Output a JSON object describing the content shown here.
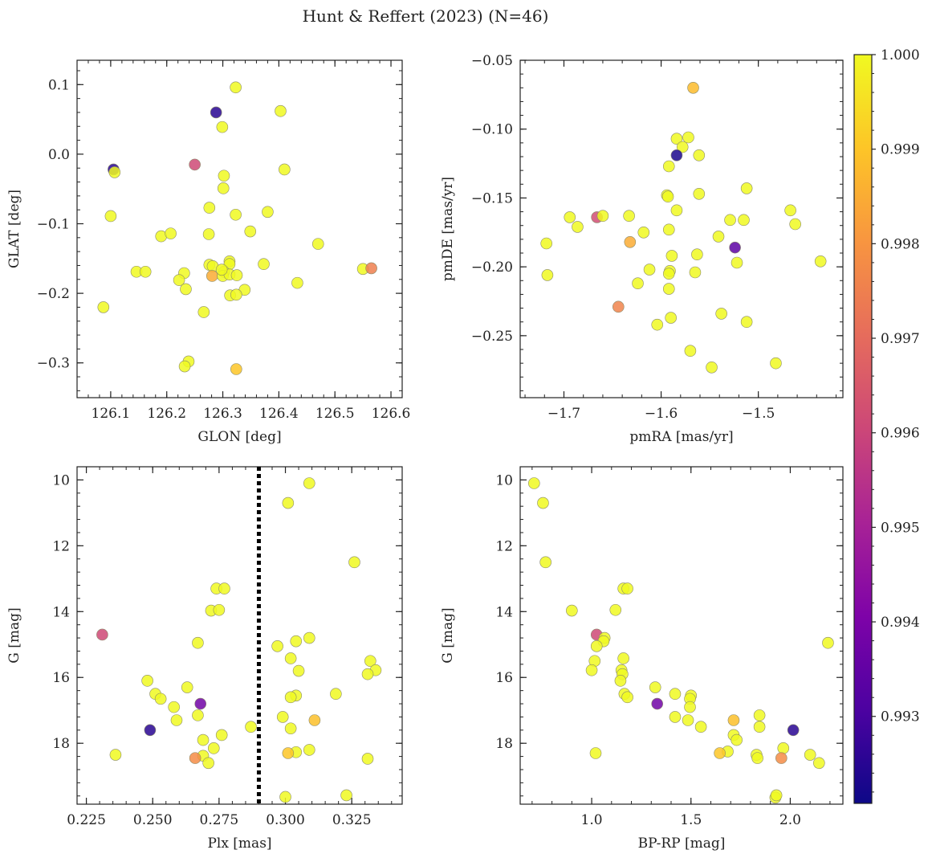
{
  "title": "Hunt & Reffert (2023) (N=46)",
  "colorbar": {
    "vmin": 0.99208,
    "vmax": 1.0,
    "ticks": [
      "1.000",
      "0.999",
      "0.998",
      "0.997",
      "0.996",
      "0.995",
      "0.994",
      "0.993"
    ],
    "colormap": "plasma"
  },
  "chart_data": [
    {
      "type": "scatter",
      "xlabel": "GLON [deg]",
      "ylabel": "GLAT [deg]",
      "xlim": [
        126.04,
        126.62
      ],
      "ylim": [
        -0.35,
        0.135
      ],
      "xticks": [
        126.1,
        126.2,
        126.3,
        126.4,
        126.5,
        126.6
      ],
      "xtick_labels": [
        "126.1",
        "126.2",
        "126.3",
        "126.4",
        "126.5",
        "126.6"
      ],
      "yticks": [
        0.1,
        0.0,
        -0.1,
        -0.2,
        -0.3
      ],
      "ytick_labels": [
        "0.1",
        "0.0",
        "−0.1",
        "−0.2",
        "−0.3"
      ],
      "invert_y": false,
      "points": [
        [
          126.323,
          0.096,
          1.0
        ],
        [
          126.288,
          0.06,
          0.9925
        ],
        [
          126.299,
          0.039,
          1.0
        ],
        [
          126.403,
          0.062,
          1.0
        ],
        [
          126.105,
          -0.022,
          0.9925
        ],
        [
          126.107,
          -0.026,
          1.0
        ],
        [
          126.25,
          -0.015,
          0.9961
        ],
        [
          126.302,
          -0.031,
          1.0
        ],
        [
          126.41,
          -0.022,
          1.0
        ],
        [
          126.301,
          -0.049,
          1.0
        ],
        [
          126.1,
          -0.089,
          1.0
        ],
        [
          126.276,
          -0.077,
          1.0
        ],
        [
          126.323,
          -0.087,
          1.0
        ],
        [
          126.38,
          -0.083,
          1.0
        ],
        [
          126.19,
          -0.118,
          1.0
        ],
        [
          126.207,
          -0.114,
          1.0
        ],
        [
          126.275,
          -0.115,
          1.0
        ],
        [
          126.349,
          -0.111,
          1.0
        ],
        [
          126.47,
          -0.129,
          1.0
        ],
        [
          126.312,
          -0.154,
          1.0
        ],
        [
          126.312,
          -0.158,
          1.0
        ],
        [
          126.373,
          -0.158,
          1.0
        ],
        [
          126.276,
          -0.159,
          1.0
        ],
        [
          126.282,
          -0.161,
          1.0
        ],
        [
          126.146,
          -0.169,
          1.0
        ],
        [
          126.162,
          -0.169,
          1.0
        ],
        [
          126.231,
          -0.171,
          1.0
        ],
        [
          126.281,
          -0.175,
          0.9985
        ],
        [
          126.302,
          -0.169,
          1.0
        ],
        [
          126.3,
          -0.175,
          1.0
        ],
        [
          126.312,
          -0.173,
          1.0
        ],
        [
          126.325,
          -0.174,
          1.0
        ],
        [
          126.222,
          -0.181,
          1.0
        ],
        [
          126.433,
          -0.185,
          1.0
        ],
        [
          126.55,
          -0.165,
          1.0
        ],
        [
          126.565,
          -0.164,
          0.9975
        ],
        [
          126.234,
          -0.194,
          1.0
        ],
        [
          126.339,
          -0.195,
          1.0
        ],
        [
          126.313,
          -0.203,
          1.0
        ],
        [
          126.324,
          -0.202,
          1.0
        ],
        [
          126.087,
          -0.22,
          1.0
        ],
        [
          126.266,
          -0.227,
          1.0
        ],
        [
          126.239,
          -0.298,
          1.0
        ],
        [
          126.232,
          -0.305,
          1.0
        ],
        [
          126.324,
          -0.309,
          0.999
        ],
        [
          126.298,
          -0.166,
          1.0
        ]
      ]
    },
    {
      "type": "scatter",
      "xlabel": "pmRA [mas/yr]",
      "ylabel": "pmDE [mas/yr]",
      "xlim": [
        -1.745,
        -1.413
      ],
      "ylim": [
        -0.295,
        -0.05
      ],
      "xticks": [
        -1.7,
        -1.6,
        -1.5
      ],
      "xtick_labels": [
        "−1.7",
        "−1.6",
        "−1.5"
      ],
      "yticks": [
        -0.05,
        -0.1,
        -0.15,
        -0.2,
        -0.25
      ],
      "ytick_labels": [
        "−0.05",
        "−0.10",
        "−0.15",
        "−0.20",
        "−0.25"
      ],
      "invert_y": false,
      "points": [
        [
          -1.567,
          -0.07,
          0.9988
        ],
        [
          -1.584,
          -0.107,
          1.0
        ],
        [
          -1.572,
          -0.106,
          1.0
        ],
        [
          -1.578,
          -0.113,
          1.0
        ],
        [
          -1.584,
          -0.119,
          0.9923
        ],
        [
          -1.561,
          -0.119,
          1.0
        ],
        [
          -1.592,
          -0.127,
          1.0
        ],
        [
          -1.512,
          -0.143,
          1.0
        ],
        [
          -1.561,
          -0.147,
          1.0
        ],
        [
          -1.594,
          -0.148,
          1.0
        ],
        [
          -1.593,
          -0.149,
          1.0
        ],
        [
          -1.584,
          -0.159,
          1.0
        ],
        [
          -1.467,
          -0.159,
          1.0
        ],
        [
          -1.694,
          -0.164,
          1.0
        ],
        [
          -1.666,
          -0.164,
          0.9962
        ],
        [
          -1.66,
          -0.163,
          1.0
        ],
        [
          -1.633,
          -0.163,
          1.0
        ],
        [
          -1.529,
          -0.166,
          1.0
        ],
        [
          -1.515,
          -0.166,
          1.0
        ],
        [
          -1.462,
          -0.169,
          1.0
        ],
        [
          -1.686,
          -0.171,
          1.0
        ],
        [
          -1.592,
          -0.173,
          1.0
        ],
        [
          -1.618,
          -0.175,
          1.0
        ],
        [
          -1.541,
          -0.178,
          1.0
        ],
        [
          -1.632,
          -0.182,
          0.9985
        ],
        [
          -1.718,
          -0.183,
          1.0
        ],
        [
          -1.524,
          -0.186,
          0.9934
        ],
        [
          -1.563,
          -0.191,
          1.0
        ],
        [
          -1.589,
          -0.192,
          1.0
        ],
        [
          -1.522,
          -0.197,
          1.0
        ],
        [
          -1.436,
          -0.196,
          1.0
        ],
        [
          -1.612,
          -0.202,
          1.0
        ],
        [
          -1.591,
          -0.203,
          1.0
        ],
        [
          -1.565,
          -0.204,
          1.0
        ],
        [
          -1.717,
          -0.206,
          1.0
        ],
        [
          -1.592,
          -0.205,
          1.0
        ],
        [
          -1.624,
          -0.212,
          1.0
        ],
        [
          -1.592,
          -0.216,
          1.0
        ],
        [
          -1.644,
          -0.229,
          0.9976
        ],
        [
          -1.538,
          -0.234,
          1.0
        ],
        [
          -1.59,
          -0.237,
          1.0
        ],
        [
          -1.604,
          -0.242,
          1.0
        ],
        [
          -1.512,
          -0.24,
          1.0
        ],
        [
          -1.57,
          -0.261,
          1.0
        ],
        [
          -1.482,
          -0.27,
          1.0
        ],
        [
          -1.548,
          -0.273,
          1.0
        ]
      ]
    },
    {
      "type": "scatter",
      "xlabel": "Plx [mas]",
      "ylabel": "G [mag]",
      "xlim": [
        0.2215,
        0.344
      ],
      "ylim": [
        19.85,
        9.6
      ],
      "xticks": [
        0.225,
        0.25,
        0.275,
        0.3,
        0.325
      ],
      "xtick_labels": [
        "0.225",
        "0.250",
        "0.275",
        "0.300",
        "0.325"
      ],
      "yticks": [
        10,
        12,
        14,
        16,
        18
      ],
      "ytick_labels": [
        "10",
        "12",
        "14",
        "16",
        "18"
      ],
      "invert_y": true,
      "vline": 0.29,
      "points": [
        [
          0.309,
          10.1,
          1.0
        ],
        [
          0.301,
          10.7,
          1.0
        ],
        [
          0.326,
          12.5,
          1.0
        ],
        [
          0.274,
          13.3,
          1.0
        ],
        [
          0.277,
          13.3,
          1.0
        ],
        [
          0.272,
          13.97,
          1.0
        ],
        [
          0.275,
          13.95,
          1.0
        ],
        [
          0.231,
          14.7,
          0.9961
        ],
        [
          0.267,
          14.95,
          1.0
        ],
        [
          0.309,
          14.8,
          1.0
        ],
        [
          0.304,
          14.9,
          1.0
        ],
        [
          0.297,
          15.05,
          1.0
        ],
        [
          0.302,
          15.42,
          1.0
        ],
        [
          0.332,
          15.5,
          1.0
        ],
        [
          0.334,
          15.78,
          1.0
        ],
        [
          0.305,
          15.8,
          1.0
        ],
        [
          0.331,
          15.9,
          1.0
        ],
        [
          0.248,
          16.1,
          1.0
        ],
        [
          0.263,
          16.3,
          1.0
        ],
        [
          0.251,
          16.5,
          1.0
        ],
        [
          0.319,
          16.5,
          1.0
        ],
        [
          0.304,
          16.55,
          1.0
        ],
        [
          0.253,
          16.65,
          1.0
        ],
        [
          0.302,
          16.6,
          1.0
        ],
        [
          0.268,
          16.8,
          0.9938
        ],
        [
          0.258,
          16.9,
          1.0
        ],
        [
          0.267,
          17.15,
          1.0
        ],
        [
          0.299,
          17.2,
          1.0
        ],
        [
          0.259,
          17.3,
          1.0
        ],
        [
          0.311,
          17.3,
          0.9989
        ],
        [
          0.287,
          17.5,
          1.0
        ],
        [
          0.249,
          17.6,
          0.9925
        ],
        [
          0.302,
          17.55,
          1.0
        ],
        [
          0.276,
          17.75,
          1.0
        ],
        [
          0.269,
          17.9,
          1.0
        ],
        [
          0.273,
          18.15,
          1.0
        ],
        [
          0.309,
          18.2,
          1.0
        ],
        [
          0.304,
          18.27,
          1.0
        ],
        [
          0.301,
          18.3,
          0.999
        ],
        [
          0.236,
          18.35,
          1.0
        ],
        [
          0.269,
          18.38,
          1.0
        ],
        [
          0.266,
          18.45,
          0.9978
        ],
        [
          0.331,
          18.47,
          1.0
        ],
        [
          0.271,
          18.6,
          1.0
        ],
        [
          0.3,
          19.63,
          1.0
        ],
        [
          0.323,
          19.58,
          1.0
        ]
      ]
    },
    {
      "type": "scatter",
      "xlabel": "BP-RP [mag]",
      "ylabel": "G [mag]",
      "xlim": [
        0.64,
        2.265
      ],
      "ylim": [
        19.85,
        9.6
      ],
      "xticks": [
        1.0,
        1.5,
        2.0
      ],
      "xtick_labels": [
        "1.0",
        "1.5",
        "2.0"
      ],
      "yticks": [
        10,
        12,
        14,
        16,
        18
      ],
      "ytick_labels": [
        "10",
        "12",
        "14",
        "16",
        "18"
      ],
      "invert_y": true,
      "points": [
        [
          0.71,
          10.1,
          1.0
        ],
        [
          0.755,
          10.7,
          1.0
        ],
        [
          0.768,
          12.5,
          1.0
        ],
        [
          1.16,
          13.3,
          1.0
        ],
        [
          1.18,
          13.3,
          1.0
        ],
        [
          0.9,
          13.97,
          1.0
        ],
        [
          1.12,
          13.95,
          1.0
        ],
        [
          1.025,
          14.7,
          0.9961
        ],
        [
          1.065,
          14.8,
          1.0
        ],
        [
          1.06,
          14.9,
          1.0
        ],
        [
          1.025,
          15.05,
          1.0
        ],
        [
          2.19,
          14.95,
          1.0
        ],
        [
          1.015,
          15.5,
          1.0
        ],
        [
          1.16,
          15.42,
          1.0
        ],
        [
          1.0,
          15.78,
          1.0
        ],
        [
          1.15,
          15.78,
          1.0
        ],
        [
          1.155,
          15.9,
          1.0
        ],
        [
          1.145,
          16.1,
          1.0
        ],
        [
          1.32,
          16.3,
          1.0
        ],
        [
          1.165,
          16.5,
          1.0
        ],
        [
          1.42,
          16.5,
          1.0
        ],
        [
          1.5,
          16.55,
          1.0
        ],
        [
          1.18,
          16.6,
          1.0
        ],
        [
          1.495,
          16.65,
          1.0
        ],
        [
          1.33,
          16.8,
          0.9938
        ],
        [
          1.495,
          16.9,
          1.0
        ],
        [
          1.845,
          17.15,
          1.0
        ],
        [
          1.42,
          17.2,
          1.0
        ],
        [
          1.485,
          17.3,
          1.0
        ],
        [
          1.715,
          17.3,
          0.9989
        ],
        [
          1.55,
          17.5,
          1.0
        ],
        [
          1.845,
          17.5,
          1.0
        ],
        [
          2.015,
          17.6,
          0.9925
        ],
        [
          1.715,
          17.75,
          1.0
        ],
        [
          1.73,
          17.9,
          1.0
        ],
        [
          1.965,
          18.15,
          1.0
        ],
        [
          1.685,
          18.25,
          1.0
        ],
        [
          1.645,
          18.3,
          0.999
        ],
        [
          1.83,
          18.35,
          1.0
        ],
        [
          2.1,
          18.35,
          1.0
        ],
        [
          1.835,
          18.45,
          1.0
        ],
        [
          1.955,
          18.45,
          0.9978
        ],
        [
          2.145,
          18.6,
          1.0
        ],
        [
          1.925,
          19.65,
          1.0
        ],
        [
          1.93,
          19.58,
          1.0
        ],
        [
          1.02,
          18.3,
          1.0
        ]
      ]
    }
  ]
}
